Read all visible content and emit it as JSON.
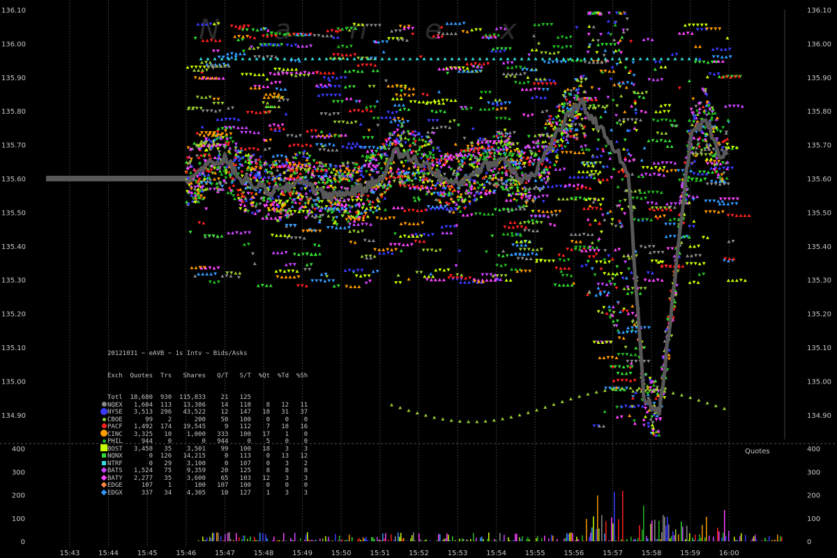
{
  "chart_data": {
    "type": "scatter",
    "title": "20121031 ~ eAVB ~ 1s Intv ~ Bids/Asks",
    "watermark": "Nanex",
    "x_ticks": [
      "15:43",
      "15:44",
      "15:45",
      "15:46",
      "15:47",
      "15:48",
      "15:49",
      "15:50",
      "15:51",
      "15:52",
      "15:53",
      "15:54",
      "15:55",
      "15:56",
      "15:57",
      "15:58",
      "15:59",
      "16:00"
    ],
    "y_ticks": [
      "136.10",
      "136.00",
      "135.90",
      "135.80",
      "135.70",
      "135.60",
      "135.50",
      "135.40",
      "135.30",
      "135.20",
      "135.10",
      "135.00",
      "134.90"
    ],
    "ylim": [
      134.82,
      136.1
    ],
    "volume_ticks": [
      "400",
      "300",
      "200",
      "100",
      "0"
    ],
    "volume_label": "Quotes",
    "volume_ylim": [
      0,
      400
    ],
    "colors": {
      "NQEX": "#8a8a8a",
      "NYSE": "#3a3aff",
      "CBOE": "#9acd32",
      "PACF": "#ff2020",
      "CINC": "#ff9a00",
      "PHIL": "#22bb22",
      "BOST": "#c8ff00",
      "NQNX": "#33dd33",
      "NTRF": "#33dddd",
      "BATS": "#cc44ff",
      "BATY": "#ff44ff",
      "EDGE": "#ff8844",
      "EDGX": "#3399ff",
      "NBBO": "#585858"
    },
    "series_trend": {
      "minutes": [
        15.0,
        15.3,
        15.6,
        16.0,
        16.4,
        16.8,
        17.2,
        17.6,
        18.0,
        18.4,
        18.8,
        19.2,
        19.6,
        20.0,
        20.4,
        20.8,
        21.2,
        21.6,
        22.0,
        22.4,
        22.8,
        23.2,
        23.6,
        24.0,
        24.4,
        24.8,
        25.2,
        25.6,
        26.0,
        26.4,
        26.8,
        27.2,
        27.6,
        28.0,
        28.4,
        28.8,
        29.2,
        29.6,
        30.0
      ],
      "prices": [
        135.6,
        135.62,
        135.64,
        135.66,
        135.6,
        135.58,
        135.56,
        135.57,
        135.6,
        135.56,
        135.55,
        135.56,
        135.57,
        135.6,
        135.68,
        135.66,
        135.64,
        135.6,
        135.58,
        135.62,
        135.64,
        135.66,
        135.6,
        135.62,
        135.7,
        135.78,
        135.82,
        135.76,
        135.7,
        135.62,
        134.95,
        134.9,
        135.3,
        135.72,
        135.78,
        135.66,
        135.72,
        135.6,
        135.65
      ]
    },
    "table": {
      "headers": [
        "Exch",
        "Quotes",
        "Trs",
        "Shares",
        "Q/T",
        "S/T",
        "%Qt",
        "%Td",
        "%Sh"
      ],
      "rows": [
        {
          "exch": "Totl",
          "quotes": "18,680",
          "trs": "930",
          "shares": "115,833",
          "qt": "21",
          "st": "125",
          "pqt": "",
          "ptd": "",
          "psh": "",
          "marker": "none"
        },
        {
          "exch": "NQEX",
          "quotes": "1,604",
          "trs": "113",
          "shares": "13,386",
          "qt": "14",
          "st": "118",
          "pqt": "8",
          "ptd": "12",
          "psh": "11",
          "marker": "circle"
        },
        {
          "exch": "NYSE",
          "quotes": "3,513",
          "trs": "296",
          "shares": "43,522",
          "qt": "12",
          "st": "147",
          "pqt": "18",
          "ptd": "31",
          "psh": "37",
          "marker": "bigcircle"
        },
        {
          "exch": "CBOE",
          "quotes": "99",
          "trs": "2",
          "shares": "200",
          "qt": "50",
          "st": "100",
          "pqt": "0",
          "ptd": "0",
          "psh": "0",
          "marker": "smallcircle"
        },
        {
          "exch": "PACF",
          "quotes": "1,492",
          "trs": "174",
          "shares": "19,545",
          "qt": "9",
          "st": "112",
          "pqt": "7",
          "ptd": "18",
          "psh": "16",
          "marker": "circle"
        },
        {
          "exch": "CINC",
          "quotes": "3,325",
          "trs": "10",
          "shares": "1,000",
          "qt": "333",
          "st": "100",
          "pqt": "17",
          "ptd": "1",
          "psh": "0",
          "marker": "bigcircle"
        },
        {
          "exch": "PHIL",
          "quotes": "944",
          "trs": "0",
          "shares": "0",
          "qt": "944",
          "st": "0",
          "pqt": "5",
          "ptd": "0",
          "psh": "0",
          "marker": "smallcircle"
        },
        {
          "exch": "BOST",
          "quotes": "3,458",
          "trs": "35",
          "shares": "3,501",
          "qt": "99",
          "st": "100",
          "pqt": "18",
          "ptd": "3",
          "psh": "3",
          "marker": "bigsquare"
        },
        {
          "exch": "NQNX",
          "quotes": "0",
          "trs": "126",
          "shares": "14,215",
          "qt": "0",
          "st": "113",
          "pqt": "0",
          "ptd": "13",
          "psh": "12",
          "marker": "square"
        },
        {
          "exch": "NTRF",
          "quotes": "0",
          "trs": "29",
          "shares": "3,100",
          "qt": "0",
          "st": "107",
          "pqt": "0",
          "ptd": "3",
          "psh": "2",
          "marker": "square"
        },
        {
          "exch": "BATS",
          "quotes": "1,524",
          "trs": "75",
          "shares": "9,359",
          "qt": "20",
          "st": "125",
          "pqt": "8",
          "ptd": "8",
          "psh": "8",
          "marker": "diamond"
        },
        {
          "exch": "BATY",
          "quotes": "2,277",
          "trs": "35",
          "shares": "3,600",
          "qt": "65",
          "st": "103",
          "pqt": "12",
          "ptd": "3",
          "psh": "3",
          "marker": "diamond"
        },
        {
          "exch": "EDGE",
          "quotes": "107",
          "trs": "1",
          "shares": "100",
          "qt": "107",
          "st": "100",
          "pqt": "0",
          "ptd": "0",
          "psh": "0",
          "marker": "diamond"
        },
        {
          "exch": "EDGX",
          "quotes": "337",
          "trs": "34",
          "shares": "4,305",
          "qt": "10",
          "st": "127",
          "pqt": "1",
          "ptd": "3",
          "psh": "3",
          "marker": "diamond"
        }
      ]
    }
  }
}
